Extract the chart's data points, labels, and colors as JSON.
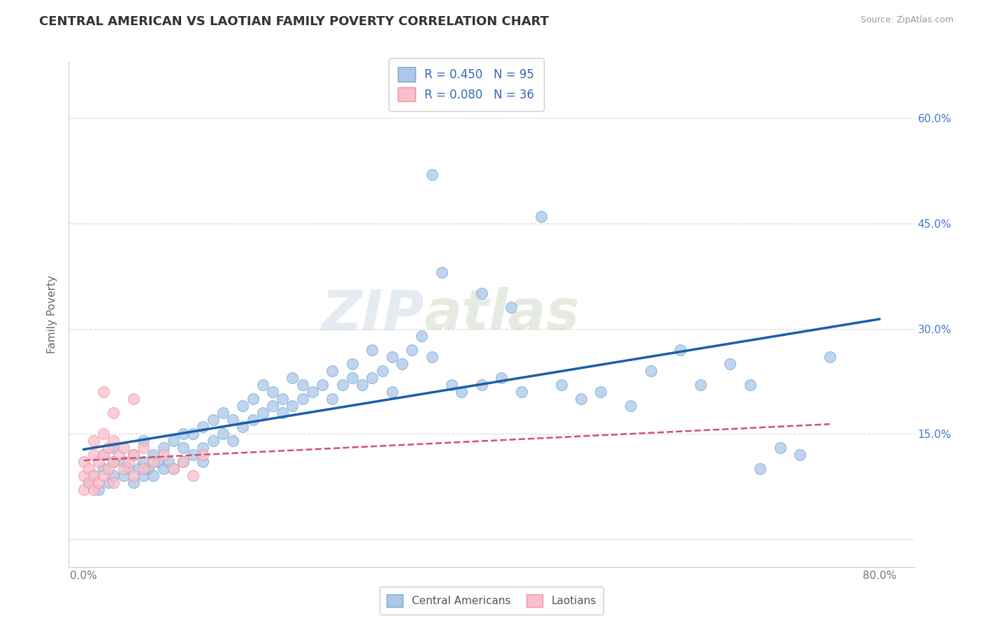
{
  "title": "CENTRAL AMERICAN VS LAOTIAN FAMILY POVERTY CORRELATION CHART",
  "source": "Source: ZipAtlas.com",
  "ylabel": "Family Poverty",
  "watermark": "ZIPatlas",
  "x_tick_positions": [
    0.0,
    0.1,
    0.2,
    0.3,
    0.4,
    0.5,
    0.6,
    0.7,
    0.8
  ],
  "x_tick_labels": [
    "0.0%",
    "",
    "",
    "",
    "",
    "",
    "",
    "",
    "80.0%"
  ],
  "y_tick_positions": [
    0.0,
    0.15,
    0.3,
    0.45,
    0.6
  ],
  "y_tick_labels_left": [
    "",
    "15.0%",
    "30.0%",
    "45.0%",
    "60.0%"
  ],
  "y_tick_labels_right": [
    "",
    "15.0%",
    "30.0%",
    "45.0%",
    "60.0%"
  ],
  "xlim": [
    -0.015,
    0.835
  ],
  "ylim": [
    -0.04,
    0.68
  ],
  "background_color": "#ffffff",
  "grid_color": "#cccccc",
  "title_fontsize": 13,
  "axis_label_fontsize": 11,
  "tick_fontsize": 11,
  "blue_face": "#aec6e8",
  "blue_edge": "#6baed6",
  "pink_face": "#f9c0cc",
  "pink_edge": "#f090a0",
  "blue_line_color": "#1a5fa8",
  "pink_line_color": "#d05070",
  "R_blue": 0.45,
  "N_blue": 95,
  "R_pink": 0.08,
  "N_pink": 36,
  "legend_label_blue": "Central Americans",
  "legend_label_pink": "Laotians",
  "blue_x": [
    0.005,
    0.01,
    0.015,
    0.02,
    0.02,
    0.025,
    0.03,
    0.03,
    0.03,
    0.04,
    0.04,
    0.045,
    0.05,
    0.05,
    0.055,
    0.06,
    0.06,
    0.06,
    0.065,
    0.07,
    0.07,
    0.075,
    0.08,
    0.08,
    0.085,
    0.09,
    0.09,
    0.1,
    0.1,
    0.1,
    0.11,
    0.11,
    0.12,
    0.12,
    0.12,
    0.13,
    0.13,
    0.14,
    0.14,
    0.15,
    0.15,
    0.16,
    0.16,
    0.17,
    0.17,
    0.18,
    0.18,
    0.19,
    0.19,
    0.2,
    0.2,
    0.21,
    0.21,
    0.22,
    0.22,
    0.23,
    0.24,
    0.25,
    0.25,
    0.26,
    0.27,
    0.27,
    0.28,
    0.29,
    0.29,
    0.3,
    0.31,
    0.31,
    0.32,
    0.33,
    0.34,
    0.35,
    0.37,
    0.38,
    0.4,
    0.42,
    0.44,
    0.46,
    0.48,
    0.5,
    0.52,
    0.55,
    0.57,
    0.6,
    0.62,
    0.65,
    0.67,
    0.68,
    0.7,
    0.72,
    0.75,
    0.36,
    0.4,
    0.43,
    0.35
  ],
  "blue_y": [
    0.08,
    0.09,
    0.07,
    0.1,
    0.12,
    0.08,
    0.09,
    0.11,
    0.13,
    0.09,
    0.11,
    0.1,
    0.08,
    0.12,
    0.1,
    0.09,
    0.11,
    0.14,
    0.1,
    0.09,
    0.12,
    0.11,
    0.1,
    0.13,
    0.11,
    0.1,
    0.14,
    0.11,
    0.13,
    0.15,
    0.12,
    0.15,
    0.13,
    0.16,
    0.11,
    0.14,
    0.17,
    0.15,
    0.18,
    0.14,
    0.17,
    0.16,
    0.19,
    0.17,
    0.2,
    0.18,
    0.22,
    0.19,
    0.21,
    0.18,
    0.2,
    0.19,
    0.23,
    0.2,
    0.22,
    0.21,
    0.22,
    0.2,
    0.24,
    0.22,
    0.23,
    0.25,
    0.22,
    0.23,
    0.27,
    0.24,
    0.21,
    0.26,
    0.25,
    0.27,
    0.29,
    0.26,
    0.22,
    0.21,
    0.22,
    0.23,
    0.21,
    0.46,
    0.22,
    0.2,
    0.21,
    0.19,
    0.24,
    0.27,
    0.22,
    0.25,
    0.22,
    0.1,
    0.13,
    0.12,
    0.26,
    0.38,
    0.35,
    0.33,
    0.52
  ],
  "pink_x": [
    0.0,
    0.0,
    0.0,
    0.005,
    0.005,
    0.01,
    0.01,
    0.01,
    0.01,
    0.015,
    0.015,
    0.02,
    0.02,
    0.02,
    0.025,
    0.025,
    0.03,
    0.03,
    0.03,
    0.035,
    0.04,
    0.04,
    0.045,
    0.05,
    0.05,
    0.06,
    0.06,
    0.07,
    0.08,
    0.09,
    0.1,
    0.11,
    0.12,
    0.05,
    0.03,
    0.02
  ],
  "pink_y": [
    0.07,
    0.09,
    0.11,
    0.08,
    0.1,
    0.07,
    0.09,
    0.12,
    0.14,
    0.08,
    0.11,
    0.09,
    0.12,
    0.15,
    0.1,
    0.13,
    0.08,
    0.11,
    0.14,
    0.12,
    0.1,
    0.13,
    0.11,
    0.09,
    0.12,
    0.1,
    0.13,
    0.11,
    0.12,
    0.1,
    0.11,
    0.09,
    0.12,
    0.2,
    0.18,
    0.21
  ]
}
